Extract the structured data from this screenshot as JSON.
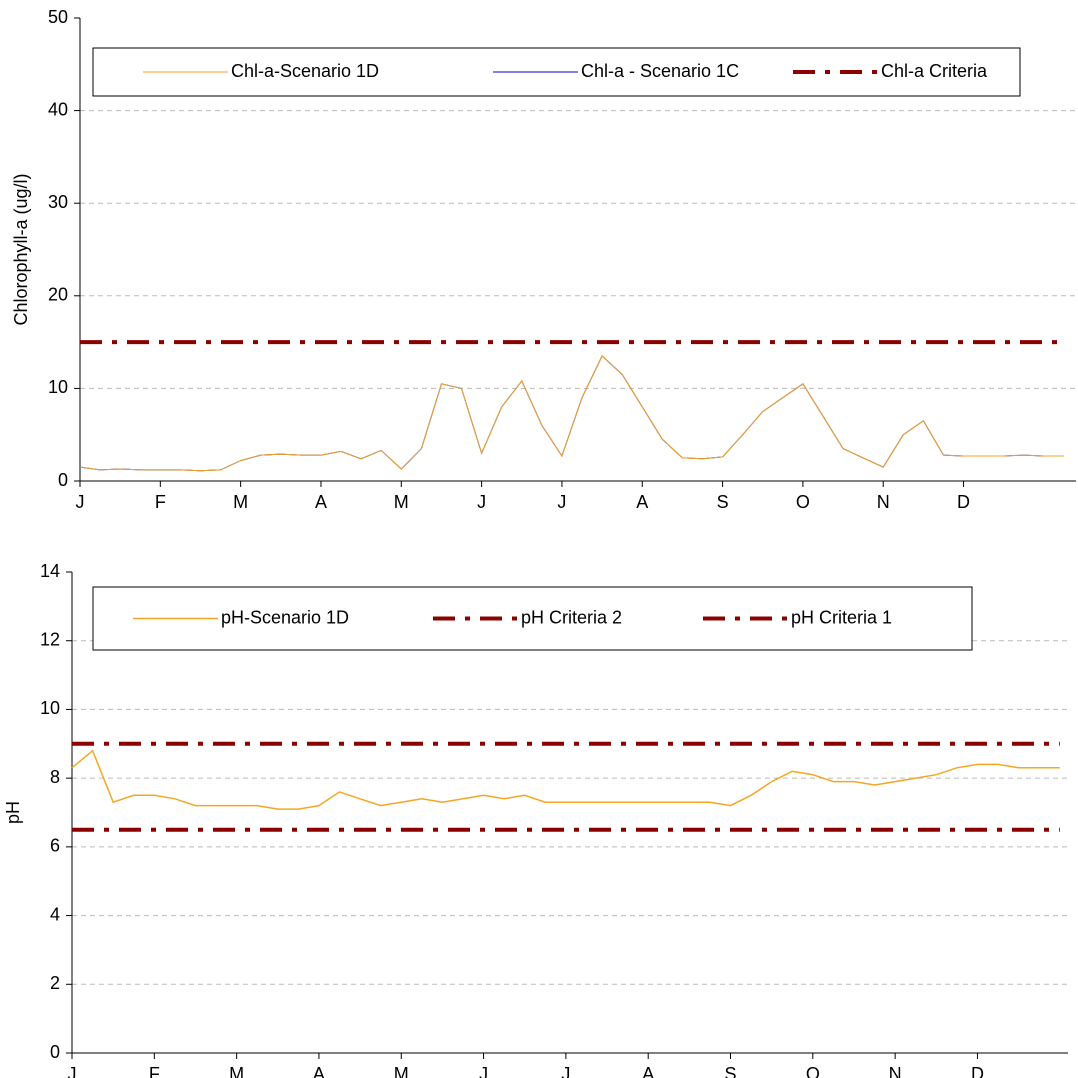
{
  "chart_data": [
    {
      "type": "line",
      "y_label": "Chlorophyll-a (ug/l)",
      "categories": [
        "J",
        null,
        null,
        null,
        "F",
        null,
        null,
        null,
        "M",
        null,
        null,
        null,
        "A",
        null,
        null,
        null,
        "M",
        null,
        null,
        null,
        "J",
        null,
        null,
        null,
        "J",
        null,
        null,
        null,
        "A",
        null,
        null,
        null,
        "S",
        null,
        null,
        null,
        "O",
        null,
        null,
        null,
        "N",
        null,
        null,
        null,
        "D",
        null,
        null,
        null,
        null,
        null
      ],
      "series": [
        {
          "name": "Chl-a - Scenario 1C",
          "color": "#0000cc",
          "line_style": "solid",
          "width": 1,
          "values": [
            1.5,
            1.2,
            1.3,
            1.2,
            1.2,
            1.2,
            1.1,
            1.2,
            2.2,
            2.8,
            2.9,
            2.8,
            2.8,
            3.2,
            2.4,
            3.3,
            1.3,
            3.5,
            10.5,
            10,
            3,
            8,
            10.8,
            6,
            2.7,
            9,
            13.5,
            11.5,
            8,
            4.5,
            2.5,
            2.4,
            2.6,
            5,
            7.5,
            9,
            10.5,
            7,
            3.5,
            2.5,
            1.5,
            5,
            6.5,
            2.8,
            2.7,
            2.7,
            2.7,
            2.8,
            2.7,
            2.7
          ]
        },
        {
          "name": "Chl-a-Scenario 1D",
          "color": "#f5a623",
          "line_style": "solid",
          "width": 1,
          "values": [
            1.5,
            1.2,
            1.3,
            1.2,
            1.2,
            1.2,
            1.1,
            1.2,
            2.2,
            2.8,
            2.9,
            2.8,
            2.8,
            3.2,
            2.4,
            3.3,
            1.3,
            3.5,
            10.5,
            10,
            3,
            8,
            10.8,
            6,
            2.7,
            9,
            13.5,
            11.5,
            8,
            4.5,
            2.5,
            2.4,
            2.6,
            5,
            7.5,
            9,
            10.5,
            7,
            3.5,
            2.5,
            1.5,
            5,
            6.5,
            2.8,
            2.7,
            2.7,
            2.7,
            2.8,
            2.7,
            2.7
          ]
        },
        {
          "name": "Chl-a Criteria",
          "color": "#8b0000",
          "line_style": "dash-dot",
          "width": 4,
          "values": [
            15,
            15,
            15,
            15,
            15,
            15,
            15,
            15,
            15,
            15,
            15,
            15,
            15,
            15,
            15,
            15,
            15,
            15,
            15,
            15,
            15,
            15,
            15,
            15,
            15,
            15,
            15,
            15,
            15,
            15,
            15,
            15,
            15,
            15,
            15,
            15,
            15,
            15,
            15,
            15,
            15,
            15,
            15,
            15,
            15,
            15,
            15,
            15,
            15,
            15
          ]
        }
      ],
      "legend_order": [
        1,
        0,
        2
      ],
      "ylim": [
        0,
        50
      ],
      "yticks": [
        0,
        10,
        20,
        30,
        40,
        50
      ],
      "grid": true,
      "legend": "top"
    },
    {
      "type": "line",
      "y_label": "pH",
      "categories": [
        "J",
        null,
        null,
        null,
        "F",
        null,
        null,
        null,
        "M",
        null,
        null,
        null,
        "A",
        null,
        null,
        null,
        "M",
        null,
        null,
        null,
        "J",
        null,
        null,
        null,
        "J",
        null,
        null,
        null,
        "A",
        null,
        null,
        null,
        "S",
        null,
        null,
        null,
        "O",
        null,
        null,
        null,
        "N",
        null,
        null,
        null,
        "D",
        null,
        null,
        null,
        null
      ],
      "series": [
        {
          "name": "pH-Scenario 1D",
          "color": "#f5a623",
          "line_style": "solid",
          "width": 1.5,
          "values": [
            8.3,
            8.8,
            7.3,
            7.5,
            7.5,
            7.4,
            7.2,
            7.2,
            7.2,
            7.2,
            7.1,
            7.1,
            7.2,
            7.6,
            7.4,
            7.2,
            7.3,
            7.4,
            7.3,
            7.4,
            7.5,
            7.4,
            7.5,
            7.3,
            7.3,
            7.3,
            7.3,
            7.3,
            7.3,
            7.3,
            7.3,
            7.3,
            7.2,
            7.5,
            7.9,
            8.2,
            8.1,
            7.9,
            7.9,
            7.8,
            7.9,
            8.0,
            8.1,
            8.3,
            8.4,
            8.4,
            8.3,
            8.3,
            8.3
          ]
        },
        {
          "name": "pH Criteria 2",
          "color": "#8b0000",
          "line_style": "dash-dot",
          "width": 4,
          "values": [
            9,
            9,
            9,
            9,
            9,
            9,
            9,
            9,
            9,
            9,
            9,
            9,
            9,
            9,
            9,
            9,
            9,
            9,
            9,
            9,
            9,
            9,
            9,
            9,
            9,
            9,
            9,
            9,
            9,
            9,
            9,
            9,
            9,
            9,
            9,
            9,
            9,
            9,
            9,
            9,
            9,
            9,
            9,
            9,
            9,
            9,
            9,
            9,
            9
          ]
        },
        {
          "name": "pH Criteria 1",
          "color": "#8b0000",
          "line_style": "dash-dot",
          "width": 4,
          "values": [
            6.5,
            6.5,
            6.5,
            6.5,
            6.5,
            6.5,
            6.5,
            6.5,
            6.5,
            6.5,
            6.5,
            6.5,
            6.5,
            6.5,
            6.5,
            6.5,
            6.5,
            6.5,
            6.5,
            6.5,
            6.5,
            6.5,
            6.5,
            6.5,
            6.5,
            6.5,
            6.5,
            6.5,
            6.5,
            6.5,
            6.5,
            6.5,
            6.5,
            6.5,
            6.5,
            6.5,
            6.5,
            6.5,
            6.5,
            6.5,
            6.5,
            6.5,
            6.5,
            6.5,
            6.5,
            6.5,
            6.5,
            6.5,
            6.5
          ]
        }
      ],
      "legend_order": [
        0,
        1,
        2
      ],
      "ylim": [
        0,
        14
      ],
      "yticks": [
        0,
        2,
        4,
        6,
        8,
        10,
        12,
        14
      ],
      "grid": true,
      "legend": "top"
    }
  ]
}
